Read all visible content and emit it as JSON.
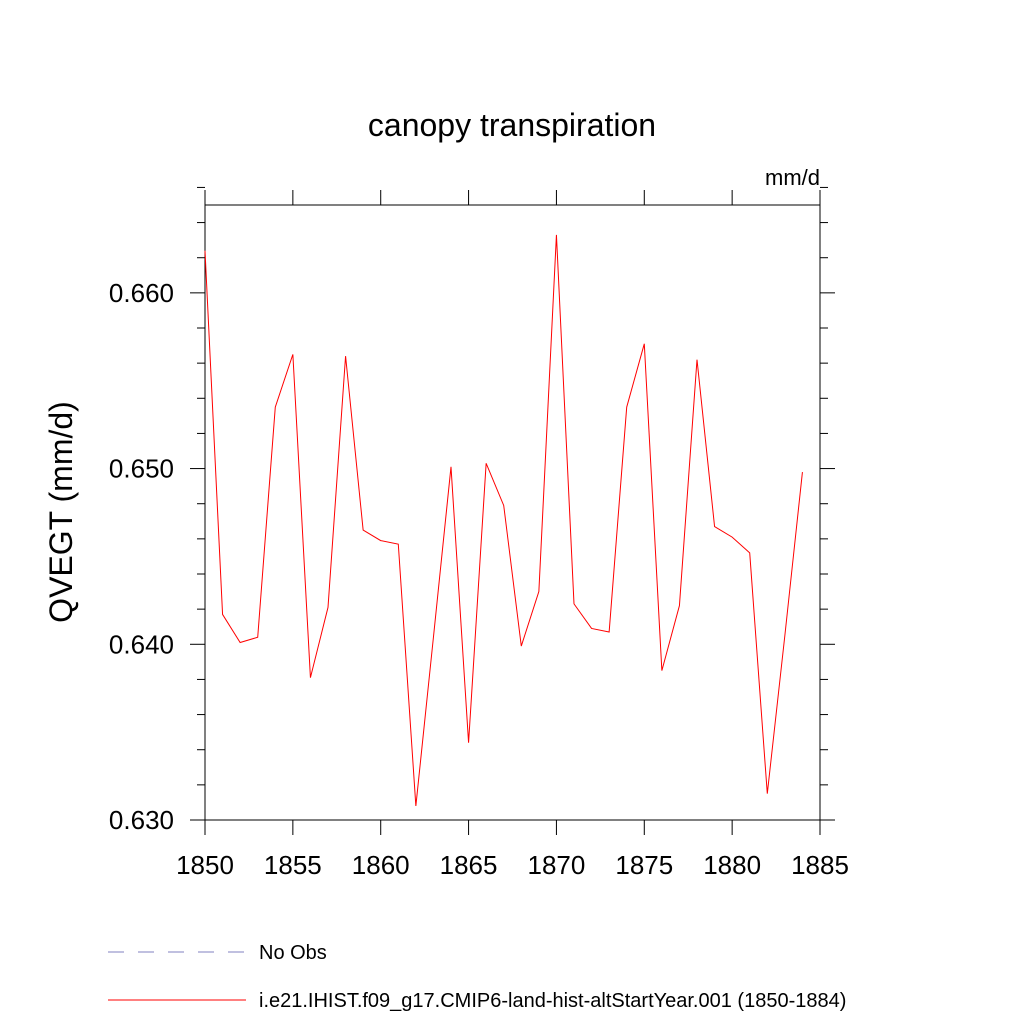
{
  "chart_data": {
    "type": "line",
    "title": "canopy transpiration",
    "units_label": "mm/d",
    "ylabel": "QVEGT  (mm/d)",
    "xlabel": "",
    "xlim": [
      1850,
      1885
    ],
    "ylim": [
      0.63,
      0.665
    ],
    "x_ticks": [
      1850,
      1855,
      1860,
      1865,
      1870,
      1875,
      1880,
      1885
    ],
    "x_tick_labels": [
      "1850",
      "1855",
      "1860",
      "1865",
      "1870",
      "1875",
      "1880",
      "1885"
    ],
    "y_ticks": [
      0.63,
      0.64,
      0.65,
      0.66
    ],
    "y_tick_labels": [
      "0.630",
      "0.640",
      "0.650",
      "0.660"
    ],
    "grid": false,
    "legend_position": "bottom-left",
    "legend": [
      {
        "label": "No Obs",
        "style": "dashed",
        "color": "#8080c0"
      },
      {
        "label": "i.e21.IHIST.f09_g17.CMIP6-land-hist-altStartYear.001 (1850-1884)",
        "style": "solid",
        "color": "#ff0000"
      }
    ],
    "series": [
      {
        "name": "i.e21.IHIST.f09_g17.CMIP6-land-hist-altStartYear.001 (1850-1884)",
        "color": "#ff0000",
        "x": [
          1850,
          1851,
          1852,
          1853,
          1854,
          1855,
          1856,
          1857,
          1858,
          1859,
          1860,
          1861,
          1862,
          1863,
          1864,
          1865,
          1866,
          1867,
          1868,
          1869,
          1870,
          1871,
          1872,
          1873,
          1874,
          1875,
          1876,
          1877,
          1878,
          1879,
          1880,
          1881,
          1882,
          1883,
          1884
        ],
        "y": [
          0.6624,
          0.6417,
          0.6401,
          0.6404,
          0.6535,
          0.6565,
          0.6381,
          0.6421,
          0.6564,
          0.6465,
          0.6459,
          0.6457,
          0.6308,
          0.6404,
          0.6501,
          0.6344,
          0.6503,
          0.6479,
          0.6399,
          0.643,
          0.6633,
          0.6423,
          0.6409,
          0.6407,
          0.6535,
          0.6571,
          0.6385,
          0.6422,
          0.6562,
          0.6467,
          0.6461,
          0.6452,
          0.6315,
          0.6405,
          0.6498
        ]
      }
    ]
  }
}
